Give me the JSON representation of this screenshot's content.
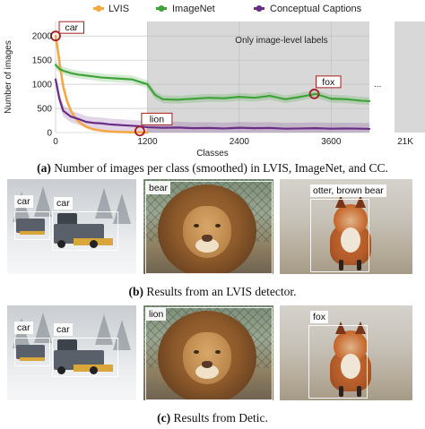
{
  "legend": [
    {
      "name": "LVIS",
      "color": "#f5a742"
    },
    {
      "name": "ImageNet",
      "color": "#3fa33a"
    },
    {
      "name": "Conceptual Captions",
      "color": "#6a2c86"
    }
  ],
  "ellipsis": "...",
  "axis_break_label": "21K",
  "chart_data": {
    "type": "line",
    "xlabel": "Classes",
    "ylabel": "Number of images",
    "xlim": [
      0,
      4100
    ],
    "ylim": [
      0,
      2300
    ],
    "x_ticks": [
      0,
      1200,
      2400,
      3600
    ],
    "x_tick_labels": [
      "0",
      "1200",
      "2400",
      "3600"
    ],
    "y_ticks": [
      0,
      500,
      1000,
      1500,
      2000
    ],
    "y_tick_labels": [
      "0",
      "500",
      "1000",
      "1500",
      "2000"
    ],
    "grid": true,
    "legend_position": "top",
    "shaded_region": {
      "x_start": 1200,
      "x_end": 4100,
      "label": "Only image-level labels"
    },
    "series": [
      {
        "name": "LVIS",
        "color": "#f5a742",
        "x": [
          0,
          30,
          60,
          100,
          150,
          200,
          250,
          300,
          350,
          400,
          450,
          500,
          600,
          700,
          800,
          900,
          1000,
          1100,
          1200
        ],
        "y": [
          2000,
          1700,
          1350,
          950,
          650,
          450,
          320,
          230,
          170,
          120,
          90,
          65,
          40,
          25,
          15,
          10,
          6,
          4,
          2
        ]
      },
      {
        "name": "ImageNet",
        "color": "#3fa33a",
        "x": [
          0,
          50,
          100,
          200,
          300,
          400,
          500,
          600,
          700,
          800,
          900,
          1000,
          1100,
          1200,
          1300,
          1400,
          1600,
          1800,
          2000,
          2200,
          2400,
          2600,
          2800,
          3000,
          3200,
          3400,
          3600,
          3800,
          4000,
          4100
        ],
        "y": [
          1400,
          1320,
          1280,
          1230,
          1200,
          1180,
          1160,
          1140,
          1130,
          1120,
          1110,
          1100,
          1050,
          1000,
          780,
          690,
          680,
          700,
          720,
          710,
          740,
          720,
          760,
          690,
          740,
          800,
          700,
          690,
          660,
          650
        ]
      },
      {
        "name": "Conceptual Captions",
        "color": "#6a2c86",
        "x": [
          0,
          50,
          100,
          200,
          300,
          400,
          500,
          600,
          700,
          800,
          900,
          1000,
          1100,
          1200,
          1400,
          1600,
          1800,
          2000,
          2200,
          2400,
          2600,
          2800,
          3000,
          3200,
          3400,
          3600,
          3800,
          4000,
          4100
        ],
        "y": [
          1100,
          700,
          450,
          330,
          280,
          220,
          200,
          190,
          170,
          160,
          150,
          140,
          130,
          110,
          100,
          105,
          90,
          95,
          85,
          100,
          90,
          95,
          80,
          85,
          90,
          80,
          85,
          80,
          75
        ]
      }
    ],
    "annotations": [
      {
        "label": "car",
        "x": 0,
        "y": 2000
      },
      {
        "label": "lion",
        "x": 1100,
        "y": 30
      },
      {
        "label": "fox",
        "x": 3380,
        "y": 800
      }
    ]
  },
  "captions": {
    "a": {
      "tag": "(a)",
      "text": " Number of images per class (smoothed) in LVIS, ImageNet, and CC."
    },
    "b": {
      "tag": "(b)",
      "text": " Results from an LVIS detector."
    },
    "c": {
      "tag": "(c)",
      "text": " Results from Detic."
    }
  },
  "panel_b": {
    "car_label_1": "car",
    "car_label_2": "car",
    "lion_label": "bear",
    "fox_label": "otter, brown bear"
  },
  "panel_c": {
    "car_label_1": "car",
    "car_label_2": "car",
    "lion_label": "lion",
    "fox_label": "fox"
  }
}
